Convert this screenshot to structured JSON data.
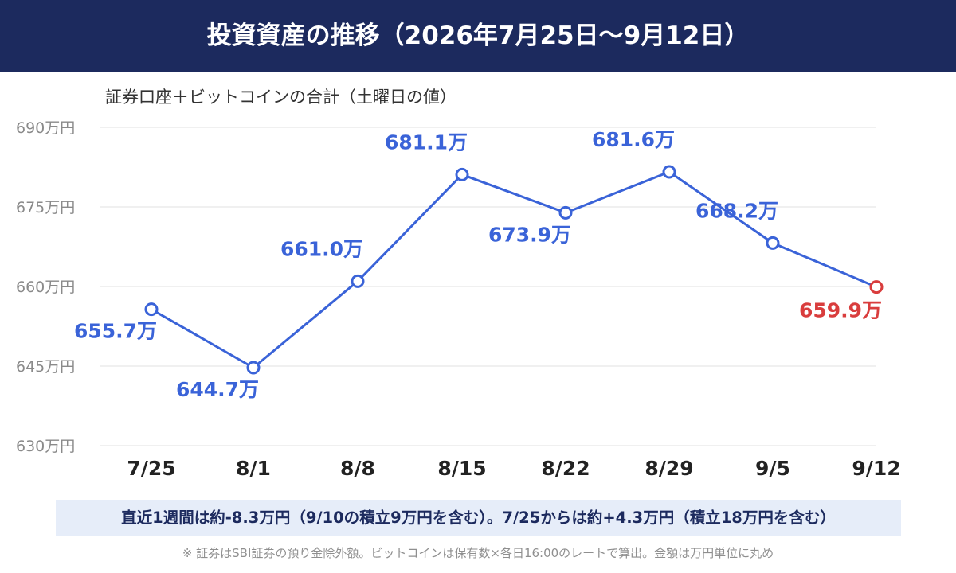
{
  "header": {
    "title": "投資資産の推移（2026年7月25日〜9月12日）",
    "subtitle": "証券口座＋ビットコインの合計（土曜日の値）"
  },
  "chart_data": {
    "type": "line",
    "categories": [
      "7/25",
      "8/1",
      "8/8",
      "8/15",
      "8/22",
      "8/29",
      "9/5",
      "9/12"
    ],
    "series": [
      {
        "values": [
          655.7,
          644.7,
          661.0,
          681.1,
          673.9,
          681.6,
          668.2,
          659.9
        ],
        "labels": [
          "655.7万",
          "644.7万",
          "661.0万",
          "681.1万",
          "673.9万",
          "681.6万",
          "668.2万",
          "659.9万"
        ]
      }
    ],
    "ylim": [
      630,
      690
    ],
    "yticks": [
      690,
      675,
      660,
      645,
      630
    ],
    "ytick_labels": [
      "690万円",
      "675万円",
      "660万円",
      "645万円",
      "630万円"
    ],
    "grid": true,
    "colors": {
      "line": "#3a63d8",
      "last_point": "#d93d3d",
      "grid": "#e2e2e2",
      "tick_text": "#8a8a8a"
    }
  },
  "summary": "直近1週間は約-8.3万円（9/10の積立9万円を含む）。7/25からは約+4.3万円（積立18万円を含む）",
  "footnote": "※ 証券はSBI証券の預り金除外額。ビットコインは保有数×各日16:00のレートで算出。金額は万円単位に丸め"
}
